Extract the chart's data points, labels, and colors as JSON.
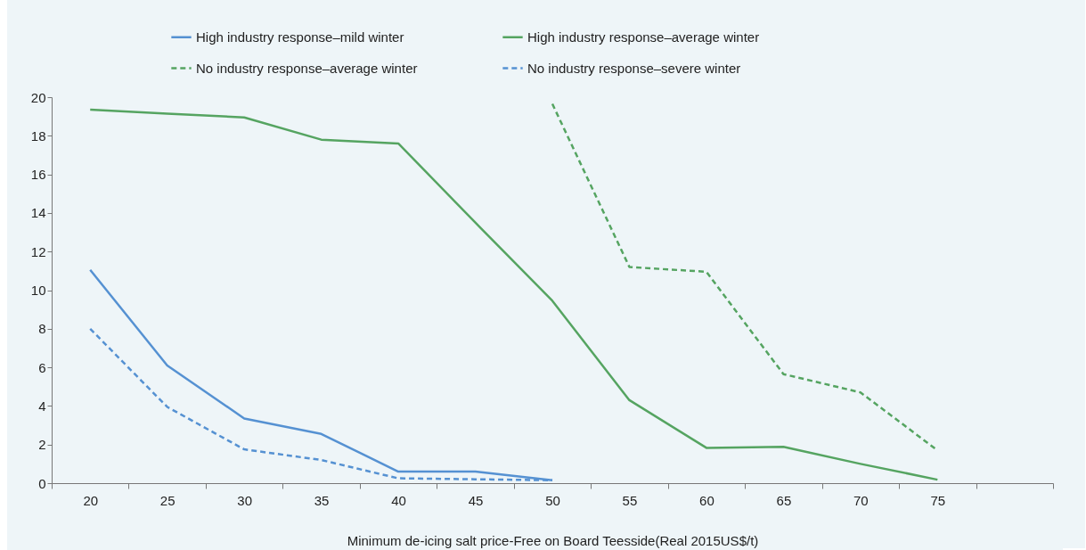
{
  "chart_data": {
    "type": "line",
    "xlabel": "Minimum de-icing salt price-Free on Board Teesside(Real 2015US$/t)",
    "categories": [
      "20",
      "25",
      "30",
      "35",
      "40",
      "45",
      "50",
      "55",
      "60",
      "65",
      "70",
      "75",
      null
    ],
    "ylim": [
      0,
      20
    ],
    "yticks": [
      0,
      2,
      4,
      6,
      8,
      10,
      12,
      14,
      16,
      18,
      20
    ],
    "grid": false,
    "legend": "top",
    "marker": "none",
    "series": [
      {
        "name": "High industry response–mild winter",
        "color": "#5591d2",
        "line_style": "solid",
        "values": [
          11.05,
          6.1,
          3.35,
          2.55,
          0.6,
          0.6,
          0.15,
          null,
          null,
          null,
          null,
          null,
          null
        ]
      },
      {
        "name": "High industry response–average winter",
        "color": "#55a461",
        "line_style": "solid",
        "values": [
          19.35,
          19.15,
          18.95,
          17.8,
          17.6,
          13.5,
          9.45,
          4.3,
          1.83,
          1.88,
          1.0,
          0.18,
          null
        ]
      },
      {
        "name": "No industry response–average winter",
        "color": "#55a461",
        "line_style": "dashed",
        "values": [
          null,
          null,
          null,
          null,
          null,
          null,
          19.65,
          11.2,
          10.95,
          5.65,
          4.7,
          1.7,
          null
        ]
      },
      {
        "name": "No industry response–severe winter",
        "color": "#5591d2",
        "line_style": "dashed",
        "values": [
          8.0,
          3.95,
          1.75,
          1.2,
          0.25,
          0.2,
          0.15,
          null,
          null,
          null,
          null,
          null,
          null
        ]
      }
    ]
  }
}
